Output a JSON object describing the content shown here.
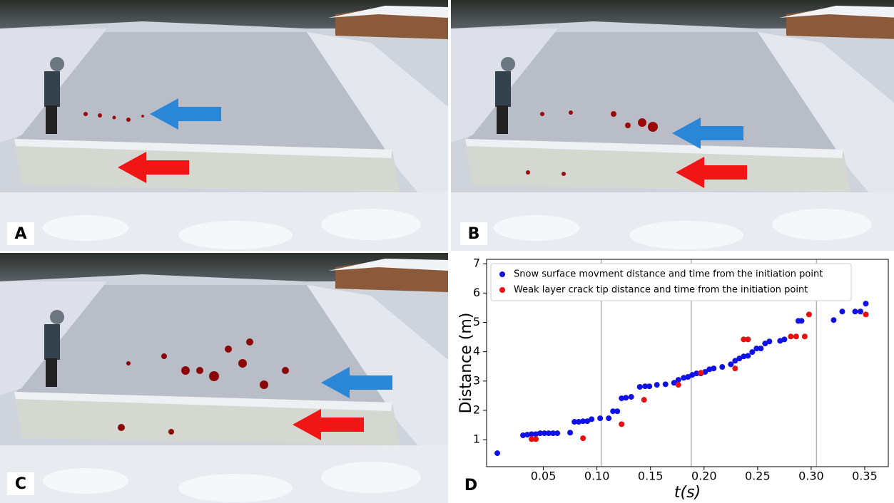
{
  "panels": [
    {
      "label": "A"
    },
    {
      "label": "B"
    },
    {
      "label": "C"
    },
    {
      "label": "D"
    }
  ],
  "chart_data": {
    "type": "scatter",
    "xlabel": "t(s)",
    "ylabel": "Distance (m)",
    "xlim": [
      -0.003,
      0.372
    ],
    "ylim": [
      0.08,
      7.15
    ],
    "xticks": [
      0.05,
      {
        "value": 0.1,
        "label": "0.10"
      },
      0.15,
      {
        "value": 0.2,
        "label": "0.20"
      },
      0.25,
      {
        "value": 0.3,
        "label": "0.30"
      },
      0.35
    ],
    "yticks": [
      1,
      2,
      3,
      4,
      5,
      6,
      7
    ],
    "grid_x": [
      0.104,
      0.188,
      0.305
    ],
    "legend": "upper left",
    "series": [
      {
        "name": "Snow surface movment distance and time from the initiation point",
        "color": "#1010e8",
        "x": [
          0.007,
          0.031,
          0.035,
          0.039,
          0.043,
          0.047,
          0.051,
          0.055,
          0.059,
          0.063,
          0.075,
          0.079,
          0.083,
          0.087,
          0.091,
          0.095,
          0.103,
          0.111,
          0.115,
          0.119,
          0.123,
          0.127,
          0.132,
          0.14,
          0.145,
          0.149,
          0.156,
          0.164,
          0.172,
          0.176,
          0.181,
          0.185,
          0.189,
          0.193,
          0.197,
          0.201,
          0.205,
          0.209,
          0.217,
          0.225,
          0.229,
          0.233,
          0.237,
          0.241,
          0.245,
          0.249,
          0.253,
          0.257,
          0.261,
          0.271,
          0.275,
          0.288,
          0.291,
          0.321,
          0.329,
          0.341,
          0.346,
          0.351
        ],
        "values": [
          0.54,
          1.15,
          1.17,
          1.19,
          1.19,
          1.22,
          1.22,
          1.22,
          1.22,
          1.22,
          1.24,
          1.61,
          1.61,
          1.63,
          1.63,
          1.7,
          1.73,
          1.73,
          1.97,
          1.97,
          2.41,
          2.43,
          2.46,
          2.8,
          2.82,
          2.82,
          2.87,
          2.89,
          2.94,
          3.04,
          3.11,
          3.14,
          3.21,
          3.26,
          3.26,
          3.31,
          3.4,
          3.43,
          3.48,
          3.57,
          3.69,
          3.77,
          3.84,
          3.86,
          3.99,
          4.11,
          4.11,
          4.28,
          4.35,
          4.37,
          4.42,
          5.05,
          5.05,
          5.08,
          5.37,
          5.37,
          5.37,
          5.64
        ]
      },
      {
        "name": "Weak layer crack tip distance and time from the initiation point",
        "color": "#e81010",
        "x": [
          0.039,
          0.043,
          0.087,
          0.123,
          0.144,
          0.176,
          0.197,
          0.229,
          0.237,
          0.241,
          0.281,
          0.286,
          0.294,
          0.298,
          0.351
        ],
        "values": [
          1.02,
          1.02,
          1.05,
          1.53,
          2.36,
          2.87,
          3.28,
          3.43,
          4.42,
          4.42,
          4.52,
          4.52,
          4.52,
          5.27,
          5.27
        ]
      }
    ]
  }
}
